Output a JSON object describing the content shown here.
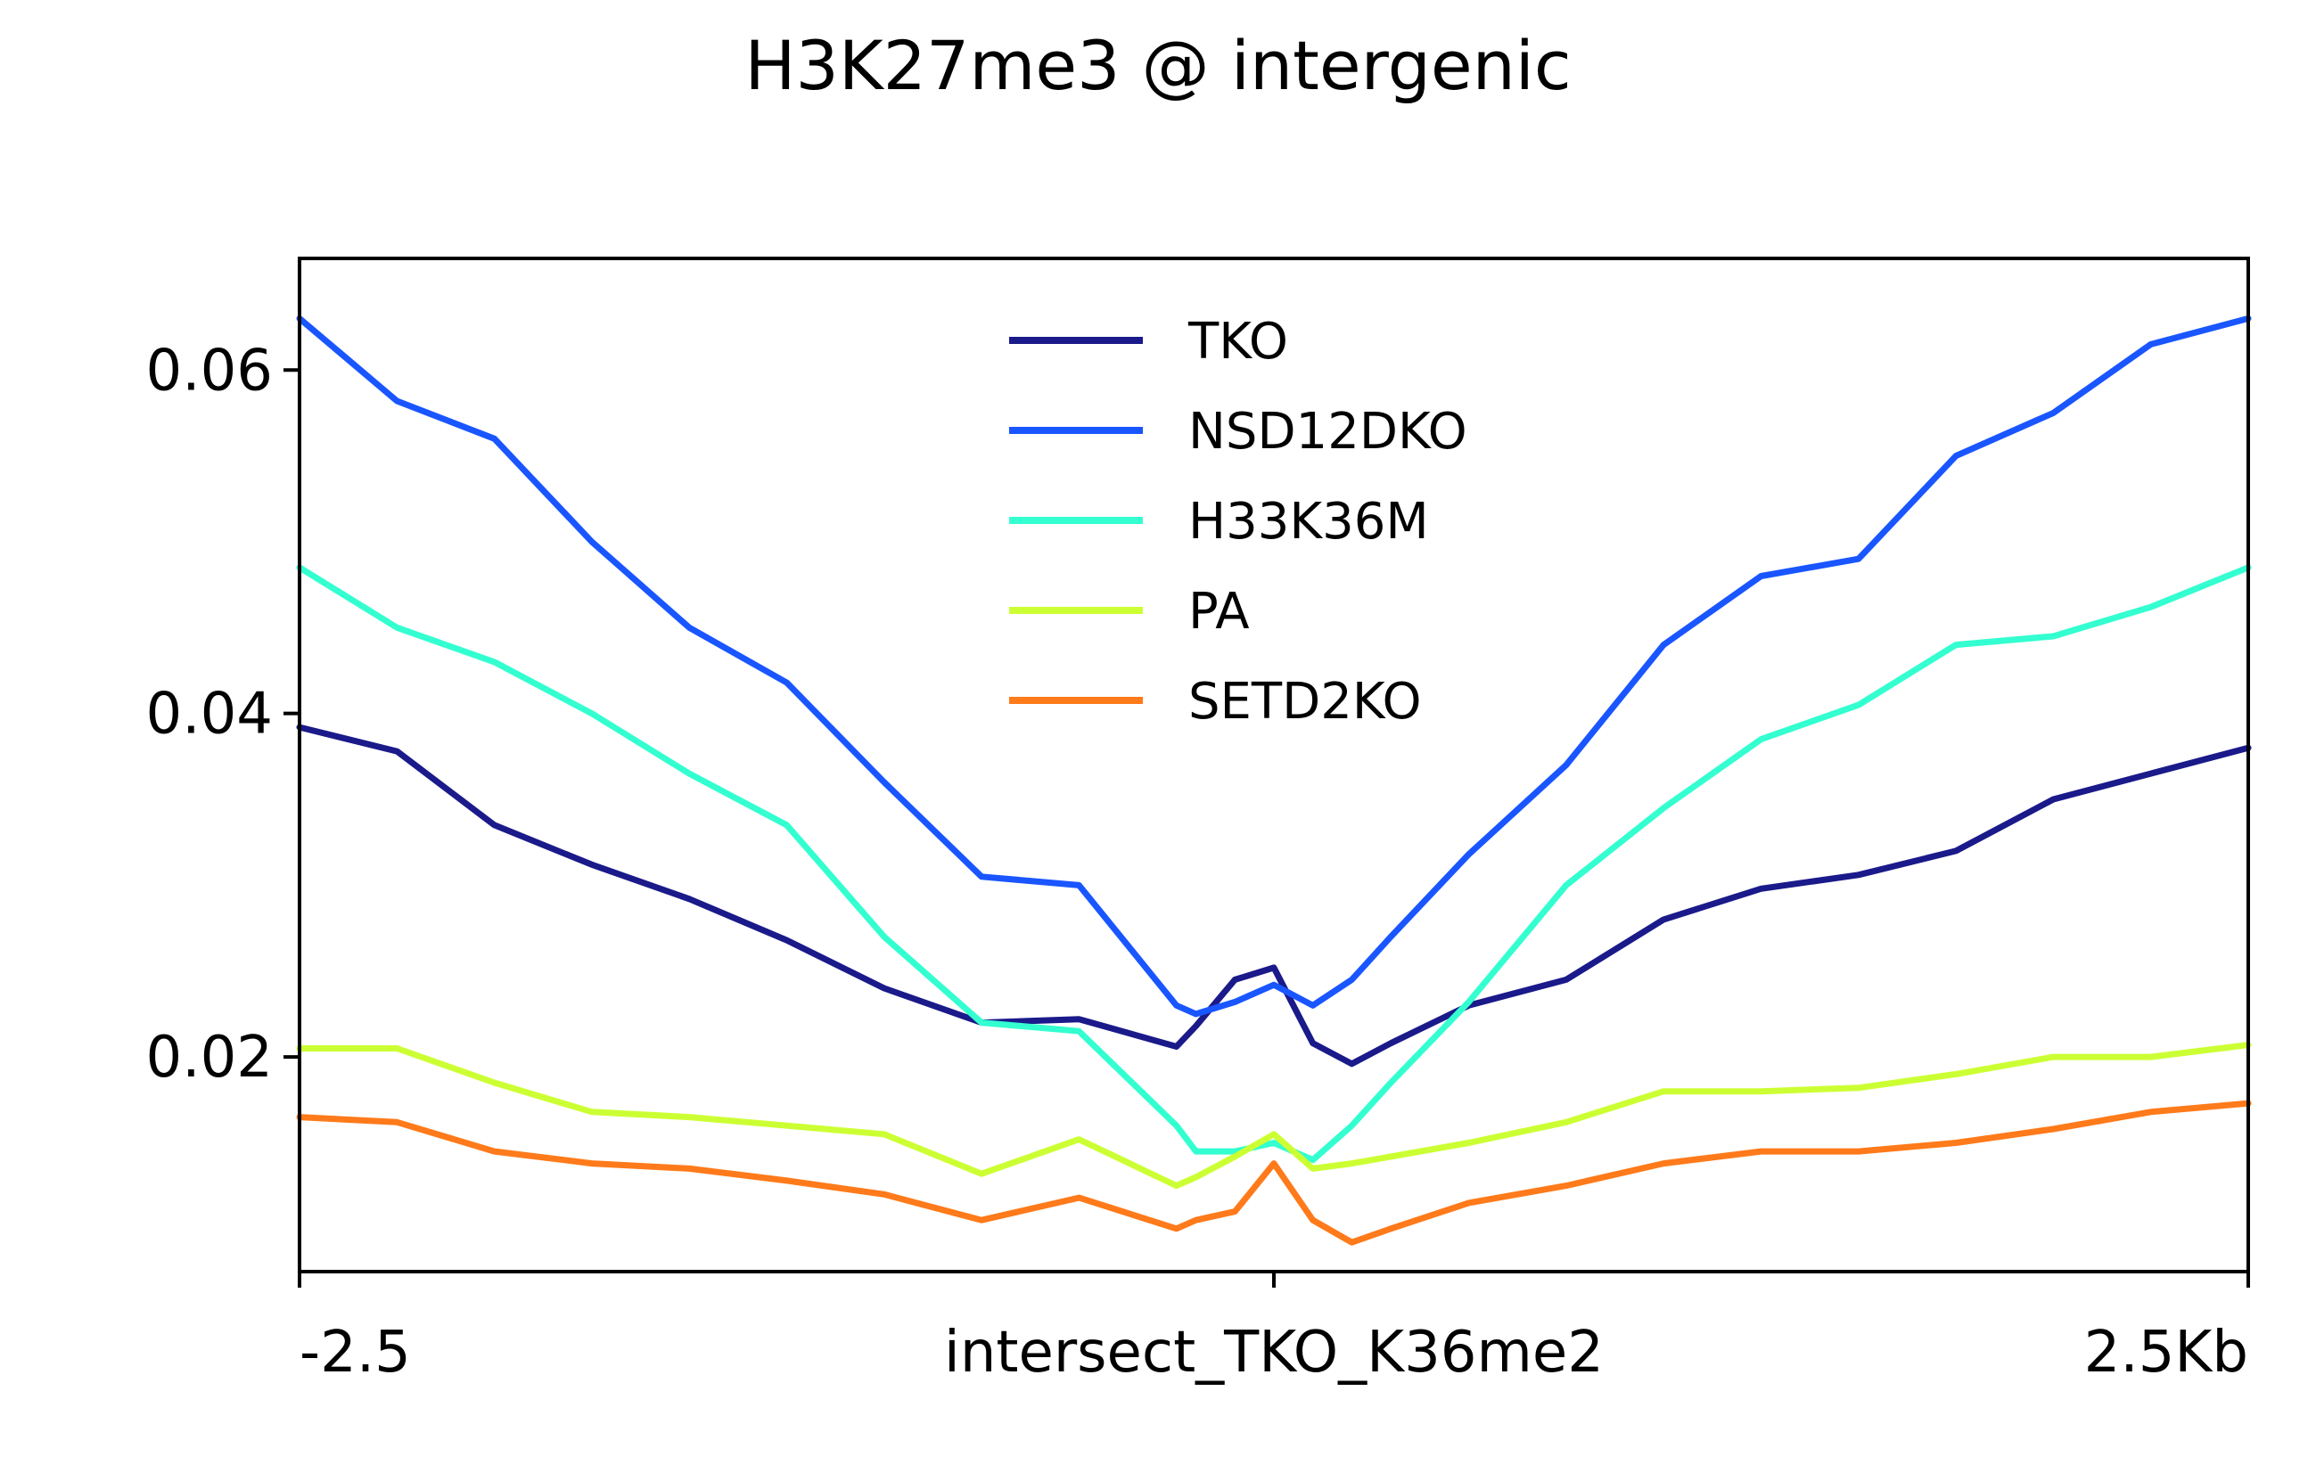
{
  "chart_data": {
    "type": "line",
    "title": "H3K27me3 @ intergenic",
    "xlabel": "",
    "ylabel": "",
    "x_ticks": [
      {
        "value": -2.5,
        "label": "-2.5"
      },
      {
        "value": 0,
        "label": "intersect_TKO_K36me2"
      },
      {
        "value": 2.5,
        "label": "2.5Kb"
      }
    ],
    "y_ticks": [
      {
        "value": 0.02,
        "label": "0.02"
      },
      {
        "value": 0.04,
        "label": "0.04"
      },
      {
        "value": 0.06,
        "label": "0.06"
      }
    ],
    "xlim": [
      -2.5,
      2.5
    ],
    "ylim": [
      0.0075,
      0.0665
    ],
    "grid": false,
    "legend_position": "top-center",
    "x": [
      -2.5,
      -2.25,
      -2.0,
      -1.75,
      -1.5,
      -1.25,
      -1.0,
      -0.75,
      -0.5,
      -0.25,
      -0.2,
      -0.1,
      0.0,
      0.1,
      0.2,
      0.3,
      0.5,
      0.75,
      1.0,
      1.25,
      1.5,
      1.75,
      2.0,
      2.25,
      2.5
    ],
    "series": [
      {
        "name": "TKO",
        "color": "#1a1a8a",
        "values": [
          0.0392,
          0.0378,
          0.0335,
          0.0312,
          0.0292,
          0.0268,
          0.024,
          0.022,
          0.0222,
          0.0206,
          0.0218,
          0.0245,
          0.0252,
          0.0208,
          0.0196,
          0.0208,
          0.023,
          0.0245,
          0.028,
          0.0298,
          0.0306,
          0.032,
          0.035,
          0.0365,
          0.038
        ]
      },
      {
        "name": "NSD12DKO",
        "color": "#1a56ff",
        "values": [
          0.063,
          0.0582,
          0.056,
          0.05,
          0.045,
          0.0418,
          0.036,
          0.0305,
          0.03,
          0.023,
          0.0225,
          0.0232,
          0.0242,
          0.023,
          0.0245,
          0.027,
          0.0318,
          0.037,
          0.044,
          0.048,
          0.049,
          0.055,
          0.0575,
          0.0615,
          0.063
        ]
      },
      {
        "name": "H33K36M",
        "color": "#33ffd0",
        "values": [
          0.0485,
          0.045,
          0.043,
          0.04,
          0.0365,
          0.0335,
          0.027,
          0.022,
          0.0215,
          0.016,
          0.0145,
          0.0145,
          0.015,
          0.014,
          0.016,
          0.0185,
          0.0232,
          0.03,
          0.0345,
          0.0385,
          0.0405,
          0.044,
          0.0445,
          0.0462,
          0.0485
        ]
      },
      {
        "name": "PA",
        "color": "#ccff33",
        "values": [
          0.0205,
          0.0205,
          0.0185,
          0.0168,
          0.0165,
          0.016,
          0.0155,
          0.0132,
          0.0152,
          0.0125,
          0.013,
          0.0142,
          0.0155,
          0.0135,
          0.0138,
          0.0142,
          0.015,
          0.0162,
          0.018,
          0.018,
          0.0182,
          0.019,
          0.02,
          0.02,
          0.0207
        ]
      },
      {
        "name": "SETD2KO",
        "color": "#ff7a1a",
        "values": [
          0.0165,
          0.0162,
          0.0145,
          0.0138,
          0.0135,
          0.0128,
          0.012,
          0.0105,
          0.0118,
          0.01,
          0.0105,
          0.011,
          0.0138,
          0.0105,
          0.0092,
          0.01,
          0.0115,
          0.0125,
          0.0138,
          0.0145,
          0.0145,
          0.015,
          0.0158,
          0.0168,
          0.0173
        ]
      }
    ]
  }
}
